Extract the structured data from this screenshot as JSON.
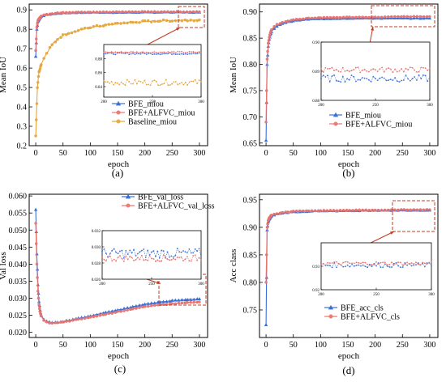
{
  "colors": {
    "bfe": "#3a6fd8",
    "alfvc": "#e8736f",
    "baseline": "#e6a53a",
    "zoom_box": "#c23b22",
    "axis": "#000000"
  },
  "chart_data": [
    {
      "id": "a",
      "type": "line",
      "caption": "(a)",
      "xlabel": "epoch",
      "ylabel": "Mean IoU",
      "xlim": [
        -12,
        315
      ],
      "ylim": [
        0.2,
        0.93
      ],
      "xticks": [
        0,
        50,
        100,
        150,
        200,
        250,
        300
      ],
      "yticks": [
        0.2,
        0.3,
        0.4,
        0.5,
        0.6,
        0.7,
        0.8,
        0.9
      ],
      "ytick_labels": [
        "0.2",
        "0.3",
        "0.4",
        "0.5",
        "0.6",
        "0.7",
        "0.8",
        "0.9"
      ],
      "legend_position": "lower-right",
      "series": [
        {
          "name": "BFE_miou",
          "color_key": "bfe",
          "marker": "triangle-up",
          "x": [
            0,
            2,
            4,
            6,
            8,
            10,
            15,
            20,
            30,
            40,
            50,
            75,
            100,
            150,
            200,
            250,
            300
          ],
          "y": [
            0.66,
            0.8,
            0.84,
            0.85,
            0.86,
            0.865,
            0.87,
            0.875,
            0.88,
            0.882,
            0.884,
            0.886,
            0.887,
            0.887,
            0.888,
            0.888,
            0.888
          ]
        },
        {
          "name": "BFE+ALFVC_miou",
          "color_key": "alfvc",
          "marker": "circle",
          "x": [
            0,
            2,
            4,
            6,
            8,
            10,
            15,
            20,
            30,
            40,
            50,
            75,
            100,
            150,
            200,
            250,
            300
          ],
          "y": [
            0.69,
            0.81,
            0.845,
            0.855,
            0.862,
            0.868,
            0.873,
            0.877,
            0.881,
            0.884,
            0.886,
            0.888,
            0.889,
            0.889,
            0.89,
            0.89,
            0.89
          ]
        },
        {
          "name": "Baseline_miou",
          "color_key": "baseline",
          "marker": "circle",
          "x": [
            0,
            3,
            6,
            10,
            15,
            20,
            30,
            40,
            50,
            60,
            75,
            100,
            125,
            150,
            175,
            200,
            225,
            250,
            275,
            300
          ],
          "y": [
            0.25,
            0.5,
            0.58,
            0.62,
            0.65,
            0.68,
            0.72,
            0.75,
            0.77,
            0.78,
            0.79,
            0.81,
            0.82,
            0.83,
            0.835,
            0.84,
            0.843,
            0.845,
            0.847,
            0.848
          ]
        }
      ],
      "inset": {
        "xlim": [
          200,
          300
        ],
        "ylim": [
          0.825,
          0.9
        ],
        "xticks": [
          200,
          250,
          300
        ],
        "yticks": [
          0.84,
          0.86,
          0.88
        ],
        "ytick_labels": [
          "0.84",
          "0.86",
          "0.88"
        ],
        "series": [
          {
            "color_key": "bfe",
            "base": 0.887,
            "amp": 0.0012
          },
          {
            "color_key": "alfvc",
            "base": 0.889,
            "amp": 0.001
          },
          {
            "color_key": "baseline",
            "base": 0.846,
            "amp": 0.004
          }
        ]
      }
    },
    {
      "id": "b",
      "type": "line",
      "caption": "(b)",
      "xlabel": "epoch",
      "ylabel": "Mean IoU",
      "xlim": [
        -12,
        315
      ],
      "ylim": [
        0.645,
        0.915
      ],
      "xticks": [
        0,
        50,
        100,
        150,
        200,
        250,
        300
      ],
      "yticks": [
        0.65,
        0.7,
        0.75,
        0.8,
        0.85,
        0.9
      ],
      "ytick_labels": [
        "0.65",
        "0.70",
        "0.75",
        "0.80",
        "0.85",
        "0.90"
      ],
      "legend_position": "lower-right",
      "series": [
        {
          "name": "BFE_miou",
          "color_key": "bfe",
          "marker": "triangle-up",
          "x": [
            0,
            2,
            4,
            6,
            8,
            10,
            15,
            20,
            30,
            40,
            50,
            75,
            100,
            150,
            200,
            250,
            300
          ],
          "y": [
            0.655,
            0.8,
            0.835,
            0.848,
            0.856,
            0.862,
            0.868,
            0.873,
            0.878,
            0.881,
            0.883,
            0.886,
            0.887,
            0.888,
            0.888,
            0.888,
            0.888
          ]
        },
        {
          "name": "BFE+ALFVC_miou",
          "color_key": "alfvc",
          "marker": "circle",
          "x": [
            0,
            2,
            4,
            6,
            8,
            10,
            15,
            20,
            30,
            40,
            50,
            75,
            100,
            150,
            200,
            250,
            300
          ],
          "y": [
            0.69,
            0.81,
            0.84,
            0.852,
            0.86,
            0.866,
            0.872,
            0.876,
            0.88,
            0.883,
            0.885,
            0.888,
            0.889,
            0.89,
            0.89,
            0.891,
            0.891
          ]
        }
      ],
      "inset": {
        "xlim": [
          200,
          300
        ],
        "ylim": [
          0.88,
          0.9
        ],
        "xticks": [
          200,
          250,
          300
        ],
        "yticks": [
          0.88,
          0.89,
          0.9
        ],
        "ytick_labels": [
          "0.88",
          "0.89",
          "0.90"
        ],
        "series": [
          {
            "color_key": "bfe",
            "base": 0.8875,
            "amp": 0.0012
          },
          {
            "color_key": "alfvc",
            "base": 0.8905,
            "amp": 0.0009
          }
        ]
      }
    },
    {
      "id": "c",
      "type": "line",
      "caption": "(c)",
      "xlabel": "epoch",
      "ylabel": "Val loss",
      "xlim": [
        -12,
        315
      ],
      "ylim": [
        0.0185,
        0.0605
      ],
      "xticks": [
        0,
        50,
        100,
        150,
        200,
        250,
        300
      ],
      "yticks": [
        0.02,
        0.025,
        0.03,
        0.035,
        0.04,
        0.045,
        0.05,
        0.055,
        0.06
      ],
      "ytick_labels": [
        "0.020",
        "0.025",
        "0.030",
        "0.035",
        "0.040",
        "0.045",
        "0.050",
        "0.055",
        "0.060"
      ],
      "legend_position": "top-right",
      "series": [
        {
          "name": "BFE_val_loss",
          "color_key": "bfe",
          "marker": "triangle-up",
          "x": [
            0,
            2,
            4,
            6,
            8,
            10,
            15,
            20,
            25,
            30,
            40,
            50,
            75,
            100,
            125,
            150,
            175,
            200,
            225,
            250,
            275,
            300
          ],
          "y": [
            0.056,
            0.043,
            0.034,
            0.029,
            0.0265,
            0.025,
            0.0238,
            0.0232,
            0.023,
            0.0228,
            0.0229,
            0.0232,
            0.024,
            0.0248,
            0.0257,
            0.0265,
            0.0274,
            0.0282,
            0.0288,
            0.0293,
            0.0296,
            0.0298
          ]
        },
        {
          "name": "BFE+ALFVC_val_loss",
          "color_key": "alfvc",
          "marker": "circle",
          "x": [
            0,
            2,
            4,
            6,
            8,
            10,
            15,
            20,
            25,
            30,
            40,
            50,
            75,
            100,
            125,
            150,
            175,
            200,
            225,
            250,
            275,
            300
          ],
          "y": [
            0.052,
            0.04,
            0.032,
            0.028,
            0.026,
            0.0247,
            0.0236,
            0.023,
            0.0228,
            0.0227,
            0.0228,
            0.023,
            0.0237,
            0.0244,
            0.0252,
            0.026,
            0.0268,
            0.0275,
            0.028,
            0.0284,
            0.0287,
            0.0289
          ]
        }
      ],
      "inset": {
        "xlim": [
          200,
          300
        ],
        "ylim": [
          0.026,
          0.032
        ],
        "xticks": [
          200,
          250,
          300
        ],
        "yticks": [
          0.026,
          0.028,
          0.03,
          0.032
        ],
        "ytick_labels": [
          "0.026",
          "0.028",
          "0.030",
          "0.032"
        ],
        "series": [
          {
            "color_key": "bfe",
            "base": 0.0292,
            "amp": 0.0006
          },
          {
            "color_key": "alfvc",
            "base": 0.0286,
            "amp": 0.0004
          }
        ]
      }
    },
    {
      "id": "d",
      "type": "line",
      "caption": "(d)",
      "xlabel": "epoch",
      "ylabel": "Acc class",
      "xlim": [
        -12,
        315
      ],
      "ylim": [
        0.7,
        0.96
      ],
      "xticks": [
        0,
        50,
        100,
        150,
        200,
        250,
        300
      ],
      "yticks": [
        0.75,
        0.8,
        0.85,
        0.9,
        0.95
      ],
      "ytick_labels": [
        "0.75",
        "0.80",
        "0.85",
        "0.90",
        "0.95"
      ],
      "legend_position": "lower-right",
      "series": [
        {
          "name": "BFE_acc_cls",
          "color_key": "bfe",
          "marker": "triangle-up",
          "x": [
            0,
            2,
            4,
            6,
            8,
            10,
            15,
            20,
            30,
            40,
            50,
            75,
            100,
            150,
            200,
            250,
            300
          ],
          "y": [
            0.723,
            0.895,
            0.91,
            0.915,
            0.918,
            0.92,
            0.922,
            0.924,
            0.926,
            0.927,
            0.928,
            0.929,
            0.93,
            0.93,
            0.931,
            0.931,
            0.931
          ]
        },
        {
          "name": "BFE+ALFVC_cls",
          "color_key": "alfvc",
          "marker": "circle",
          "x": [
            0,
            2,
            4,
            6,
            8,
            10,
            15,
            20,
            30,
            40,
            50,
            75,
            100,
            150,
            200,
            250,
            300
          ],
          "y": [
            0.8,
            0.9,
            0.912,
            0.917,
            0.92,
            0.922,
            0.924,
            0.925,
            0.927,
            0.928,
            0.929,
            0.93,
            0.93,
            0.931,
            0.931,
            0.932,
            0.932
          ]
        }
      ],
      "inset": {
        "xlim": [
          200,
          300
        ],
        "ylim": [
          0.92,
          0.94
        ],
        "xticks": [
          200,
          250,
          300
        ],
        "yticks": [
          0.92,
          0.93
        ],
        "ytick_labels": [
          "0.92",
          "0.93"
        ],
        "series": [
          {
            "color_key": "bfe",
            "base": 0.9305,
            "amp": 0.001
          },
          {
            "color_key": "alfvc",
            "base": 0.9312,
            "amp": 0.0008
          }
        ]
      }
    }
  ]
}
